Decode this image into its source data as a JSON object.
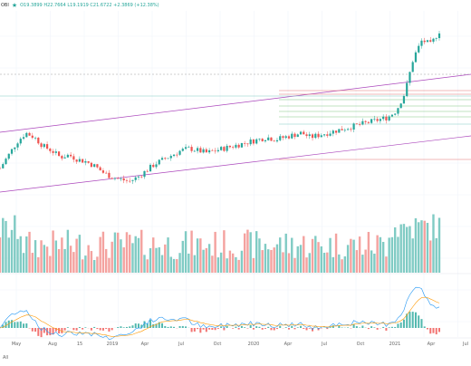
{
  "header": {
    "symbol": "OBI",
    "star_icon": "star-icon",
    "ohlc": "O19.3899 H22.7664 L19.1919 C21.6722 +2.3869 (+12.38%)"
  },
  "colors": {
    "up": "#26a69a",
    "down": "#ef5350",
    "channel": "#ab47bc",
    "fib_red": "#e57373",
    "fib_green": "#81c784",
    "fib_blue": "#80cbc4",
    "macd": "#2196f3",
    "signal": "#ff9800",
    "grid": "#f0f3fa"
  },
  "time_axis": {
    "labels": [
      "May",
      "Aug",
      "15",
      "2019",
      "Apr",
      "Jul",
      "Oct",
      "2020",
      "Apr",
      "Jul",
      "Oct",
      "2021",
      "Apr",
      "Jul"
    ]
  },
  "footer": {
    "all_label": "All"
  },
  "chart_data": {
    "type": "candlestick",
    "title": "",
    "volume_panel": true,
    "macd_panel": true,
    "price_series": [
      22,
      28,
      34,
      38,
      36,
      32,
      30,
      27,
      28,
      26,
      25,
      23,
      20,
      18,
      17,
      16,
      18,
      21,
      24,
      26,
      28,
      30,
      31,
      30,
      29,
      30,
      31,
      32,
      33,
      34,
      35,
      36,
      35,
      36,
      37,
      38,
      36,
      37,
      38,
      39,
      40,
      41,
      42,
      43,
      44,
      45,
      48,
      56,
      72,
      80,
      78,
      84
    ],
    "trendlines": [
      "rising channel upper",
      "rising channel lower"
    ],
    "fib_levels": 8,
    "x_axis": [
      "May",
      "Aug",
      "15",
      "2019",
      "Apr",
      "Jul",
      "Oct",
      "2020",
      "Apr",
      "Jul",
      "Oct",
      "2021",
      "Apr",
      "Jul"
    ]
  }
}
